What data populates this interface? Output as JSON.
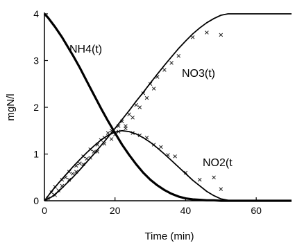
{
  "chart_data": {
    "type": "line",
    "title": "",
    "xlabel": "Time (min)",
    "ylabel": "mgN/l",
    "xlim": [
      0,
      70
    ],
    "ylim": [
      0,
      4
    ],
    "x_ticks": [
      0,
      20,
      40,
      60
    ],
    "y_ticks": [
      0,
      1,
      2,
      3,
      4
    ],
    "grid": false,
    "legend": "none",
    "series": [
      {
        "name": "NH4(t)",
        "color": "#000000",
        "x": [
          0,
          1,
          3,
          5,
          8,
          10,
          12,
          14,
          16,
          18,
          20,
          22,
          24,
          26,
          28,
          30,
          32,
          34,
          36,
          38,
          40,
          42,
          44,
          46,
          48,
          50,
          55,
          60,
          65,
          70
        ],
        "y": [
          4.0,
          3.92,
          3.72,
          3.5,
          3.12,
          2.85,
          2.56,
          2.27,
          1.98,
          1.71,
          1.45,
          1.2,
          0.98,
          0.78,
          0.6,
          0.45,
          0.33,
          0.23,
          0.15,
          0.09,
          0.05,
          0.03,
          0.02,
          0.01,
          0.01,
          0.0,
          0.0,
          0.0,
          0.0,
          0.0
        ]
      },
      {
        "name": "NO3(t)",
        "color": "#000000",
        "x": [
          0,
          2,
          4,
          6,
          8,
          10,
          12,
          14,
          16,
          18,
          20,
          22,
          24,
          26,
          28,
          30,
          32,
          34,
          36,
          38,
          40,
          42,
          44,
          46,
          48,
          50,
          52,
          55,
          60,
          65,
          70
        ],
        "y": [
          0.0,
          0.08,
          0.2,
          0.35,
          0.5,
          0.66,
          0.83,
          1.0,
          1.18,
          1.36,
          1.55,
          1.74,
          1.93,
          2.13,
          2.32,
          2.52,
          2.71,
          2.9,
          3.08,
          3.26,
          3.42,
          3.57,
          3.7,
          3.81,
          3.9,
          3.97,
          4.0,
          4.0,
          4.0,
          4.0,
          4.0
        ]
      },
      {
        "name": "NO2(t",
        "color": "#000000",
        "x": [
          0,
          2,
          4,
          6,
          8,
          10,
          12,
          14,
          16,
          18,
          20,
          22,
          24,
          26,
          28,
          30,
          32,
          34,
          36,
          38,
          40,
          42,
          44,
          46,
          48,
          50,
          52,
          55,
          60,
          65,
          70
        ],
        "y": [
          0.0,
          0.2,
          0.38,
          0.55,
          0.72,
          0.88,
          1.03,
          1.17,
          1.3,
          1.4,
          1.47,
          1.5,
          1.48,
          1.43,
          1.35,
          1.25,
          1.13,
          1.0,
          0.86,
          0.72,
          0.58,
          0.44,
          0.32,
          0.2,
          0.11,
          0.04,
          0.01,
          0.0,
          0.0,
          0.0,
          0.0
        ]
      }
    ],
    "measured_points": [
      {
        "x": 1,
        "y": 0.05
      },
      {
        "x": 2,
        "y": 0.18
      },
      {
        "x": 3,
        "y": 0.3
      },
      {
        "x": 4,
        "y": 0.22
      },
      {
        "x": 5,
        "y": 0.45
      },
      {
        "x": 6,
        "y": 0.5
      },
      {
        "x": 7,
        "y": 0.62
      },
      {
        "x": 8,
        "y": 0.58
      },
      {
        "x": 9,
        "y": 0.75
      },
      {
        "x": 10,
        "y": 0.8
      },
      {
        "x": 11,
        "y": 0.95
      },
      {
        "x": 12,
        "y": 0.9
      },
      {
        "x": 13,
        "y": 1.1
      },
      {
        "x": 14,
        "y": 1.05
      },
      {
        "x": 15,
        "y": 1.2
      },
      {
        "x": 16,
        "y": 1.3
      },
      {
        "x": 17,
        "y": 1.35
      },
      {
        "x": 18,
        "y": 1.45
      },
      {
        "x": 19,
        "y": 1.5
      },
      {
        "x": 20,
        "y": 1.42
      },
      {
        "x": 21,
        "y": 1.6
      },
      {
        "x": 22,
        "y": 1.7
      },
      {
        "x": 23,
        "y": 1.55
      },
      {
        "x": 24,
        "y": 1.85
      },
      {
        "x": 25,
        "y": 1.45
      },
      {
        "x": 26,
        "y": 2.05
      },
      {
        "x": 27,
        "y": 1.4
      },
      {
        "x": 28,
        "y": 2.3
      },
      {
        "x": 29,
        "y": 1.35
      },
      {
        "x": 30,
        "y": 2.5
      },
      {
        "x": 31,
        "y": 1.2
      },
      {
        "x": 32,
        "y": 2.65
      },
      {
        "x": 33,
        "y": 1.15
      },
      {
        "x": 34,
        "y": 2.8
      },
      {
        "x": 35,
        "y": 0.98
      },
      {
        "x": 36,
        "y": 2.95
      },
      {
        "x": 37,
        "y": 0.95
      },
      {
        "x": 38,
        "y": 3.1
      },
      {
        "x": 40,
        "y": 0.6
      },
      {
        "x": 42,
        "y": 3.5
      },
      {
        "x": 44,
        "y": 0.45
      },
      {
        "x": 46,
        "y": 3.6
      },
      {
        "x": 48,
        "y": 0.5
      },
      {
        "x": 50,
        "y": 3.55
      },
      {
        "x": 50,
        "y": 0.25
      },
      {
        "x": 3,
        "y": 0.12
      },
      {
        "x": 5,
        "y": 0.32
      },
      {
        "x": 7,
        "y": 0.45
      },
      {
        "x": 9,
        "y": 0.62
      },
      {
        "x": 11,
        "y": 0.78
      },
      {
        "x": 13,
        "y": 0.92
      },
      {
        "x": 15,
        "y": 1.05
      },
      {
        "x": 17,
        "y": 1.22
      },
      {
        "x": 19,
        "y": 1.32
      },
      {
        "x": 21,
        "y": 1.48
      },
      {
        "x": 23,
        "y": 1.6
      },
      {
        "x": 25,
        "y": 1.78
      },
      {
        "x": 27,
        "y": 2.0
      },
      {
        "x": 29,
        "y": 2.2
      },
      {
        "x": 31,
        "y": 2.4
      }
    ]
  }
}
